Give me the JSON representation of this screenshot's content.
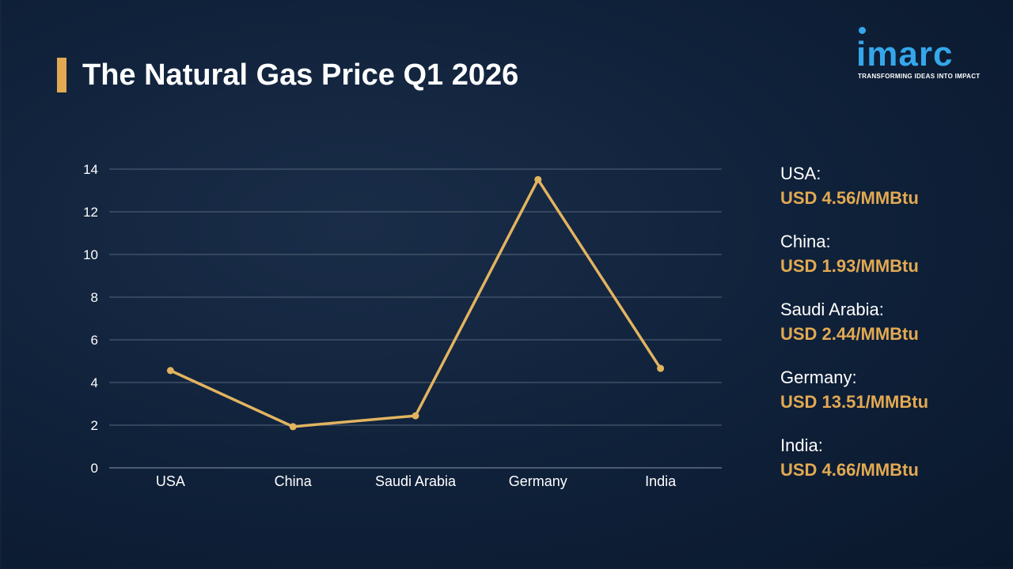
{
  "title": "The Natural Gas Price Q1 2026",
  "logo": {
    "name": "imarc",
    "tagline": "TRANSFORMING IDEAS INTO IMPACT"
  },
  "colors": {
    "accent": "#e2a952",
    "line": "#e2b460",
    "background": "#0d1d33",
    "logo": "#35a7ea"
  },
  "chart_data": {
    "type": "line",
    "categories": [
      "USA",
      "China",
      "Saudi Arabia",
      "Germany",
      "India"
    ],
    "values": [
      4.56,
      1.93,
      2.44,
      13.51,
      4.66
    ],
    "ylim": [
      0,
      14
    ],
    "yticks": [
      0,
      2,
      4,
      6,
      8,
      10,
      12,
      14
    ],
    "grid": true,
    "title": "",
    "xlabel": "",
    "ylabel": ""
  },
  "side_labels": [
    {
      "country": "USA:",
      "value": "USD 4.56/MMBtu"
    },
    {
      "country": "China:",
      "value": "USD 1.93/MMBtu"
    },
    {
      "country": "Saudi Arabia:",
      "value": "USD 2.44/MMBtu"
    },
    {
      "country": "Germany:",
      "value": "USD 13.51/MMBtu"
    },
    {
      "country": "India:",
      "value": "USD 4.66/MMBtu"
    }
  ]
}
